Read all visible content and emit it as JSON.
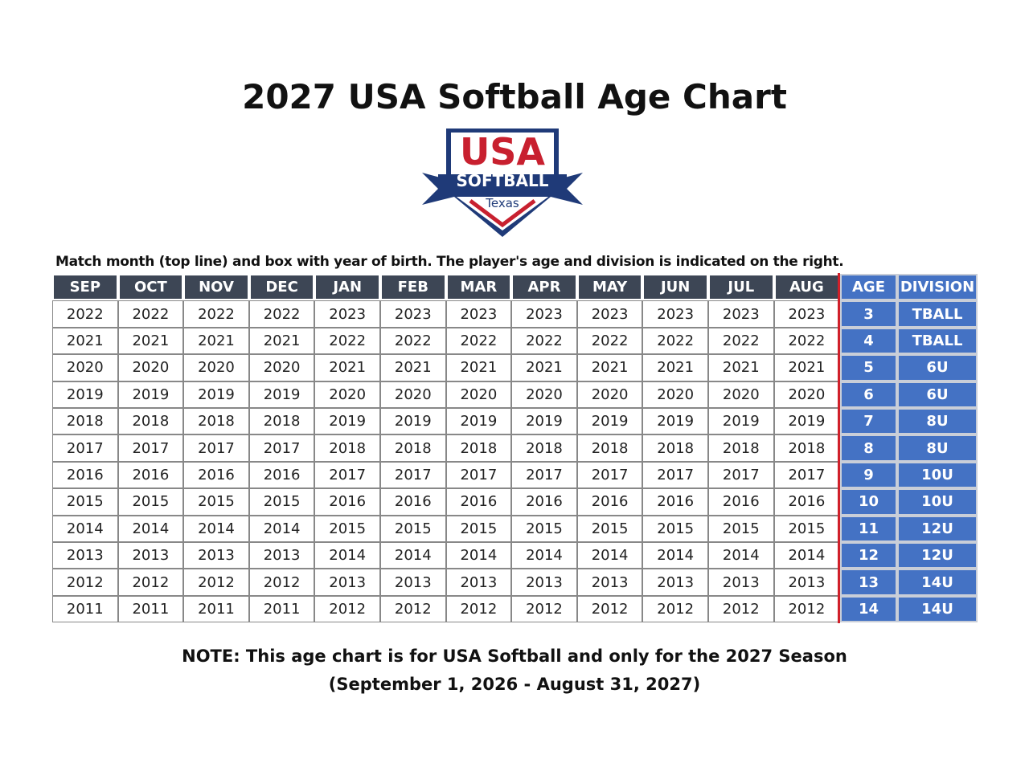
{
  "title": "2027 USA Softball Age Chart",
  "logo": {
    "line1": "USA",
    "line2": "SOFTBALL",
    "line3": "Texas"
  },
  "instruction": "Match month (top line) and box with year of birth.  The player's age and division is indicated on the right.",
  "table": {
    "header": [
      "SEP",
      "OCT",
      "NOV",
      "DEC",
      "JAN",
      "FEB",
      "MAR",
      "APR",
      "MAY",
      "JUN",
      "JUL",
      "AUG",
      "AGE",
      "DIVISION"
    ],
    "rows": [
      [
        "2022",
        "2022",
        "2022",
        "2022",
        "2023",
        "2023",
        "2023",
        "2023",
        "2023",
        "2023",
        "2023",
        "2023",
        "3",
        "TBALL"
      ],
      [
        "2021",
        "2021",
        "2021",
        "2021",
        "2022",
        "2022",
        "2022",
        "2022",
        "2022",
        "2022",
        "2022",
        "2022",
        "4",
        "TBALL"
      ],
      [
        "2020",
        "2020",
        "2020",
        "2020",
        "2021",
        "2021",
        "2021",
        "2021",
        "2021",
        "2021",
        "2021",
        "2021",
        "5",
        "6U"
      ],
      [
        "2019",
        "2019",
        "2019",
        "2019",
        "2020",
        "2020",
        "2020",
        "2020",
        "2020",
        "2020",
        "2020",
        "2020",
        "6",
        "6U"
      ],
      [
        "2018",
        "2018",
        "2018",
        "2018",
        "2019",
        "2019",
        "2019",
        "2019",
        "2019",
        "2019",
        "2019",
        "2019",
        "7",
        "8U"
      ],
      [
        "2017",
        "2017",
        "2017",
        "2017",
        "2018",
        "2018",
        "2018",
        "2018",
        "2018",
        "2018",
        "2018",
        "2018",
        "8",
        "8U"
      ],
      [
        "2016",
        "2016",
        "2016",
        "2016",
        "2017",
        "2017",
        "2017",
        "2017",
        "2017",
        "2017",
        "2017",
        "2017",
        "9",
        "10U"
      ],
      [
        "2015",
        "2015",
        "2015",
        "2015",
        "2016",
        "2016",
        "2016",
        "2016",
        "2016",
        "2016",
        "2016",
        "2016",
        "10",
        "10U"
      ],
      [
        "2014",
        "2014",
        "2014",
        "2014",
        "2015",
        "2015",
        "2015",
        "2015",
        "2015",
        "2015",
        "2015",
        "2015",
        "11",
        "12U"
      ],
      [
        "2013",
        "2013",
        "2013",
        "2013",
        "2014",
        "2014",
        "2014",
        "2014",
        "2014",
        "2014",
        "2014",
        "2014",
        "12",
        "12U"
      ],
      [
        "2012",
        "2012",
        "2012",
        "2012",
        "2013",
        "2013",
        "2013",
        "2013",
        "2013",
        "2013",
        "2013",
        "2013",
        "13",
        "14U"
      ],
      [
        "2011",
        "2011",
        "2011",
        "2011",
        "2012",
        "2012",
        "2012",
        "2012",
        "2012",
        "2012",
        "2012",
        "2012",
        "14",
        "14U"
      ]
    ]
  },
  "note": {
    "line1": "NOTE:  This age chart is for USA Softball and only for the 2027 Season",
    "line2": "(September 1, 2026 - August 31, 2027)"
  }
}
